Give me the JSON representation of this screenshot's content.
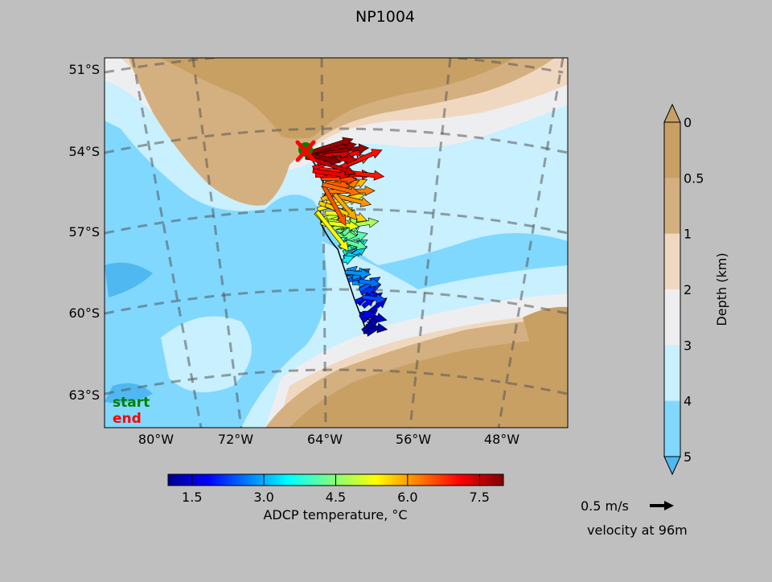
{
  "title": "NP1004",
  "map": {
    "lat_labels": [
      "51°S",
      "54°S",
      "57°S",
      "60°S",
      "63°S"
    ],
    "lon_labels": [
      "80°W",
      "72°W",
      "64°W",
      "56°W",
      "48°W"
    ],
    "start_label": "start",
    "end_label": "end",
    "start_color": "#008000",
    "end_color": "#ff0000"
  },
  "depth_colorbar": {
    "label": "Depth (km)",
    "ticks": [
      "0",
      "0.5",
      "1",
      "2",
      "3",
      "4",
      "5"
    ],
    "colors": [
      "#c8a064",
      "#d4b080",
      "#f0d8c0",
      "#eeeef0",
      "#c8f0ff",
      "#80d8ff",
      "#50b8f0"
    ]
  },
  "temp_colorbar": {
    "label": "ADCP temperature, °C",
    "ticks": [
      "1.5",
      "3.0",
      "4.5",
      "6.0",
      "7.5"
    ],
    "range": [
      1.0,
      8.0
    ]
  },
  "velocity_key": {
    "label": "0.5 m/s",
    "caption": "velocity at 96m"
  }
}
